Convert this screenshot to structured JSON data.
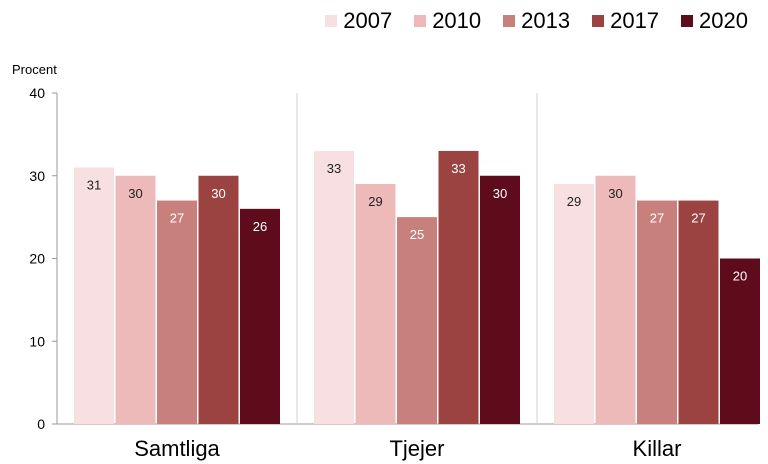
{
  "chart_data": {
    "type": "bar",
    "ylabel": "Procent",
    "ylim": [
      0,
      40
    ],
    "yticks": [
      0,
      10,
      20,
      30,
      40
    ],
    "categories": [
      "Samtliga",
      "Tjejer",
      "Killar"
    ],
    "series": [
      {
        "name": "2007",
        "color": "#f8dfe2",
        "values": [
          31,
          33,
          29
        ],
        "labelColor": "#222222"
      },
      {
        "name": "2010",
        "color": "#edb9b9",
        "values": [
          30,
          29,
          30
        ],
        "labelColor": "#222222"
      },
      {
        "name": "2013",
        "color": "#c8807c",
        "values": [
          27,
          25,
          27
        ],
        "labelColor": "#ffffff"
      },
      {
        "name": "2017",
        "color": "#9b4341",
        "values": [
          30,
          33,
          27
        ],
        "labelColor": "#ffffff"
      },
      {
        "name": "2020",
        "color": "#5e0c1c",
        "values": [
          26,
          30,
          20
        ],
        "labelColor": "#ffffff"
      }
    ],
    "gridlines": false,
    "legend_position": "top-right"
  }
}
